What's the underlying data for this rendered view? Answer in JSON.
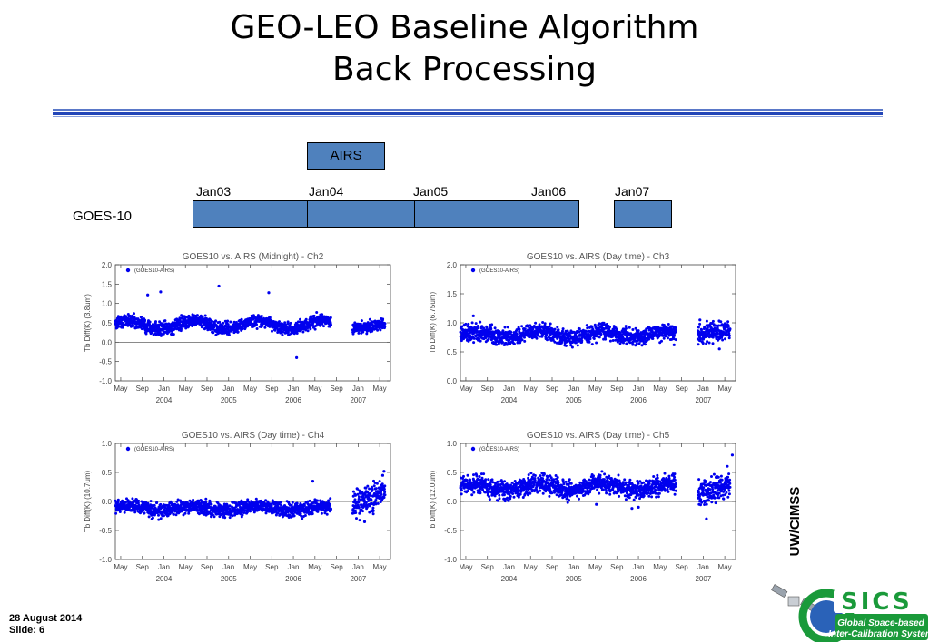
{
  "slide": {
    "title_line1": "GEO-LEO Baseline Algorithm",
    "title_line2": "Back Processing",
    "date": "28 August 2014",
    "slide_number": "Slide: 6",
    "side_label": "UW/CIMSS",
    "logo_text": "SICS",
    "logo_subtitle_line1": "Global Space-based",
    "logo_subtitle_line2": "Inter-Calibration System"
  },
  "timeline": {
    "instrument_label": "AIRS",
    "satellite_label": "GOES-10",
    "markers": [
      "Jan03",
      "Jan04",
      "Jan05",
      "Jan06",
      "Jan07"
    ],
    "bar_color": "#4f81bd"
  },
  "chart_data": [
    {
      "type": "scatter",
      "title": "GOES10 vs. AIRS (Midnight) - Ch2",
      "ylabel": "Tb Diff(K) (3.8um)",
      "legend": "(GOES10-AIRS)",
      "legend_position": "top-left",
      "ylim": [
        -1.0,
        2.0
      ],
      "yticks": [
        -1.0,
        -0.5,
        0.0,
        0.5,
        1.0,
        1.5,
        2.0
      ],
      "year_labels": [
        "2004",
        "2005",
        "2006",
        "2007"
      ],
      "month_labels": [
        "May",
        "Sep",
        "Jan",
        "May",
        "Sep",
        "Jan",
        "May",
        "Sep",
        "Jan",
        "May",
        "Sep",
        "Jan",
        "May"
      ],
      "color": "#0000ee",
      "segments": [
        {
          "start": "2003-04",
          "end": "2006-08",
          "mean": 0.45,
          "amplitude": 0.12,
          "noise": 0.08
        },
        {
          "start": "2006-12",
          "end": "2007-06",
          "mean": 0.42,
          "amplitude": 0.05,
          "noise": 0.07
        }
      ],
      "outliers": [
        [
          2003.95,
          1.3
        ],
        [
          2003.75,
          1.22
        ],
        [
          2004.85,
          1.45
        ],
        [
          2005.62,
          1.28
        ],
        [
          2006.05,
          -0.4
        ]
      ]
    },
    {
      "type": "scatter",
      "title": "GOES10 vs. AIRS (Day time) - Ch3",
      "ylabel": "Tb Diff(K) (6.75um)",
      "legend": "(GOES10-AIRS)",
      "legend_position": "top-left",
      "ylim": [
        0.0,
        2.0
      ],
      "yticks": [
        0.0,
        0.5,
        1.0,
        1.5,
        2.0
      ],
      "year_labels": [
        "2004",
        "2005",
        "2006",
        "2007"
      ],
      "month_labels": [
        "May",
        "Sep",
        "Jan",
        "May",
        "Sep",
        "Jan",
        "May",
        "Sep",
        "Jan",
        "May",
        "Sep",
        "Jan",
        "May"
      ],
      "color": "#0000ee",
      "segments": [
        {
          "start": "2003-04",
          "end": "2006-08",
          "mean": 0.8,
          "amplitude": 0.05,
          "noise": 0.07
        },
        {
          "start": "2006-12",
          "end": "2007-06",
          "mean": 0.85,
          "amplitude": 0.04,
          "noise": 0.08
        }
      ],
      "outliers": [
        [
          2003.45,
          1.12
        ],
        [
          2006.95,
          1.05
        ],
        [
          2007.25,
          0.55
        ],
        [
          2006.55,
          0.62
        ]
      ]
    },
    {
      "type": "scatter",
      "title": "GOES10 vs. AIRS (Day time) - Ch4",
      "ylabel": "Tb Diff(K) (10.7um)",
      "legend": "(GOES10-AIRS)",
      "legend_position": "top-left",
      "ylim": [
        -1.0,
        1.0
      ],
      "yticks": [
        -1.0,
        -0.5,
        0.0,
        0.5,
        1.0
      ],
      "year_labels": [
        "2004",
        "2005",
        "2006",
        "2007"
      ],
      "month_labels": [
        "May",
        "Sep",
        "Jan",
        "May",
        "Sep",
        "Jan",
        "May",
        "Sep",
        "Jan",
        "May",
        "Sep",
        "Jan",
        "May"
      ],
      "color": "#0000ee",
      "segments": [
        {
          "start": "2003-04",
          "end": "2006-08",
          "mean": -0.12,
          "amplitude": 0.04,
          "noise": 0.06
        },
        {
          "start": "2006-12",
          "end": "2007-06",
          "mean": 0.05,
          "amplitude": 0.08,
          "noise": 0.12
        }
      ],
      "outliers": [
        [
          2006.3,
          0.35
        ],
        [
          2007.4,
          0.52
        ],
        [
          2007.38,
          0.45
        ],
        [
          2007.1,
          -0.35
        ]
      ]
    },
    {
      "type": "scatter",
      "title": "GOES10 vs. AIRS (Day time) - Ch5",
      "ylabel": "Tb Diff(K) (12.0um)",
      "legend": "(GOES10-AIRS)",
      "legend_position": "top-left",
      "ylim": [
        -1.0,
        1.0
      ],
      "yticks": [
        -1.0,
        -0.5,
        0.0,
        0.5,
        1.0
      ],
      "year_labels": [
        "2004",
        "2005",
        "2006",
        "2007"
      ],
      "month_labels": [
        "May",
        "Sep",
        "Jan",
        "May",
        "Sep",
        "Jan",
        "May",
        "Sep",
        "Jan",
        "May",
        "Sep",
        "Jan",
        "May"
      ],
      "color": "#0000ee",
      "segments": [
        {
          "start": "2003-04",
          "end": "2006-08",
          "mean": 0.25,
          "amplitude": 0.06,
          "noise": 0.08
        },
        {
          "start": "2006-12",
          "end": "2007-06",
          "mean": 0.22,
          "amplitude": 0.06,
          "noise": 0.12
        }
      ],
      "outliers": [
        [
          2007.45,
          0.8
        ],
        [
          2005.9,
          -0.12
        ],
        [
          2006.0,
          -0.1
        ],
        [
          2007.05,
          -0.3
        ],
        [
          2005.35,
          -0.05
        ]
      ]
    }
  ]
}
